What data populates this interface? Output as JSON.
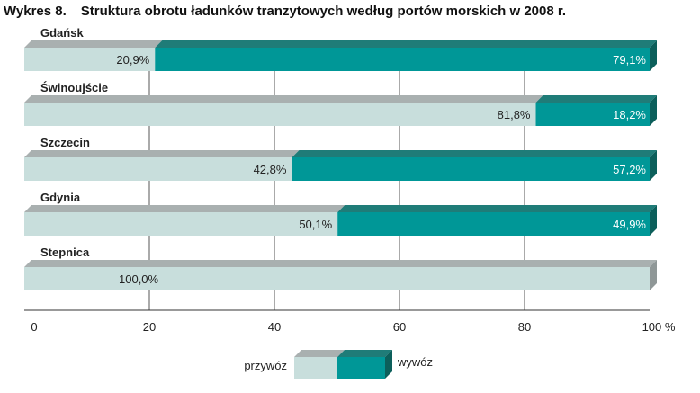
{
  "chart_title": {
    "number": "Wykres 8.",
    "text": "Struktura obrotu ładunków tranzytowych według portów morskich w 2008 r."
  },
  "colors": {
    "import": "#c8dedc",
    "import_top": "#a9b0b0",
    "import_side": "#8f9797",
    "export": "#009797",
    "export_top": "#1f7c78",
    "export_side": "#0c5f5b"
  },
  "chart_data": {
    "type": "bar",
    "orientation": "horizontal",
    "stacked": true,
    "categories": [
      "Gdańsk",
      "Świnoujście",
      "Szczecin",
      "Gdynia",
      "Stepnica"
    ],
    "series": [
      {
        "name": "przywóz",
        "values": [
          20.9,
          81.8,
          42.8,
          50.1,
          100.0
        ],
        "labels": [
          "20,9%",
          "81,8%",
          "42,8%",
          "50,1%",
          "100,0%"
        ]
      },
      {
        "name": "wywóz",
        "values": [
          79.1,
          18.2,
          57.2,
          49.9,
          0
        ],
        "labels": [
          "79,1%",
          "18,2%",
          "57,2%",
          "49,9%",
          ""
        ]
      }
    ],
    "xlim": [
      0,
      100
    ],
    "xticks": [
      "0",
      "20",
      "40",
      "60",
      "80",
      "100 %"
    ],
    "xtick_values": [
      0,
      20,
      40,
      60,
      80,
      100
    ],
    "grid": "vertical lines at 20, 40, 60, 80",
    "legend_position": "bottom-center"
  }
}
